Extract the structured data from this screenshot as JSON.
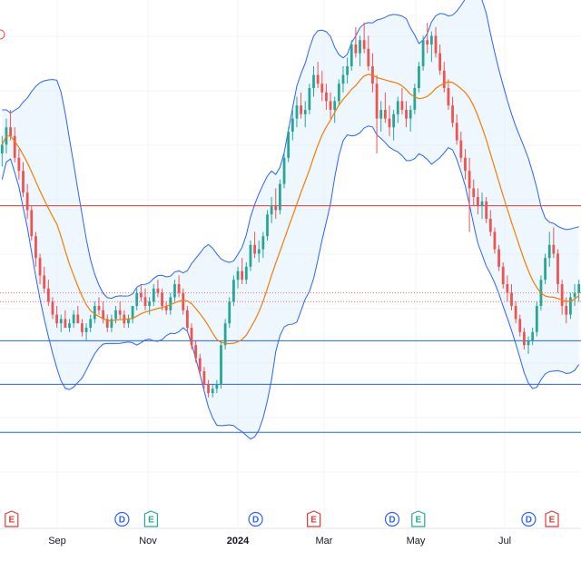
{
  "chart_data": {
    "type": "candlestick",
    "title": "",
    "x_ticks": [
      {
        "label": "Sep",
        "bold": false
      },
      {
        "label": "Nov",
        "bold": false
      },
      {
        "label": "2024",
        "bold": true
      },
      {
        "label": "Mar",
        "bold": false
      },
      {
        "label": "May",
        "bold": false
      },
      {
        "label": "Jul",
        "bold": false
      }
    ],
    "y_range_relative": [
      0,
      100
    ],
    "candles": [
      [
        70,
        74,
        67,
        72
      ],
      [
        72,
        78,
        70,
        76
      ],
      [
        76,
        80,
        73,
        74
      ],
      [
        74,
        76,
        68,
        69
      ],
      [
        69,
        71,
        64,
        66
      ],
      [
        66,
        68,
        60,
        61
      ],
      [
        61,
        63,
        55,
        57
      ],
      [
        57,
        58,
        50,
        51
      ],
      [
        51,
        52,
        44,
        46
      ],
      [
        46,
        47,
        40,
        42
      ],
      [
        42,
        44,
        38,
        39
      ],
      [
        39,
        41,
        35,
        36
      ],
      [
        36,
        37,
        32,
        33
      ],
      [
        33,
        35,
        30,
        31
      ],
      [
        31,
        33,
        29,
        32
      ],
      [
        32,
        34,
        30,
        30
      ],
      [
        30,
        32,
        29,
        31
      ],
      [
        31,
        34,
        30,
        33
      ],
      [
        33,
        35,
        31,
        31
      ],
      [
        31,
        32,
        28,
        29
      ],
      [
        29,
        31,
        27,
        30
      ],
      [
        30,
        33,
        29,
        32
      ],
      [
        32,
        36,
        31,
        35
      ],
      [
        35,
        37,
        33,
        34
      ],
      [
        34,
        36,
        31,
        32
      ],
      [
        32,
        33,
        29,
        30
      ],
      [
        30,
        33,
        29,
        32
      ],
      [
        32,
        35,
        31,
        34
      ],
      [
        34,
        36,
        32,
        33
      ],
      [
        33,
        34,
        30,
        31
      ],
      [
        31,
        33,
        30,
        32
      ],
      [
        32,
        35,
        31,
        35
      ],
      [
        35,
        39,
        34,
        38
      ],
      [
        38,
        40,
        36,
        37
      ],
      [
        37,
        39,
        34,
        35
      ],
      [
        35,
        37,
        33,
        36
      ],
      [
        36,
        40,
        35,
        39
      ],
      [
        39,
        41,
        37,
        38
      ],
      [
        38,
        39,
        34,
        35
      ],
      [
        35,
        36,
        33,
        34
      ],
      [
        34,
        38,
        33,
        37
      ],
      [
        37,
        41,
        36,
        40
      ],
      [
        40,
        42,
        37,
        38
      ],
      [
        38,
        39,
        33,
        34
      ],
      [
        34,
        35,
        29,
        30
      ],
      [
        30,
        31,
        25,
        26
      ],
      [
        26,
        27,
        22,
        23
      ],
      [
        23,
        24,
        19,
        20
      ],
      [
        20,
        21,
        16,
        17
      ],
      [
        17,
        18,
        14,
        15
      ],
      [
        15,
        17,
        14,
        16
      ],
      [
        16,
        18,
        15,
        17
      ],
      [
        17,
        27,
        16,
        26
      ],
      [
        26,
        32,
        25,
        31
      ],
      [
        31,
        37,
        30,
        36
      ],
      [
        36,
        42,
        35,
        41
      ],
      [
        41,
        44,
        39,
        43
      ],
      [
        43,
        46,
        40,
        41
      ],
      [
        41,
        45,
        40,
        44
      ],
      [
        44,
        50,
        43,
        49
      ],
      [
        49,
        52,
        46,
        47
      ],
      [
        47,
        50,
        45,
        48
      ],
      [
        48,
        52,
        46,
        51
      ],
      [
        51,
        57,
        50,
        56
      ],
      [
        56,
        60,
        54,
        58
      ],
      [
        58,
        62,
        55,
        57
      ],
      [
        57,
        64,
        56,
        63
      ],
      [
        63,
        70,
        62,
        69
      ],
      [
        69,
        76,
        68,
        75
      ],
      [
        75,
        80,
        73,
        78
      ],
      [
        78,
        83,
        76,
        81
      ],
      [
        81,
        84,
        78,
        79
      ],
      [
        79,
        82,
        76,
        80
      ],
      [
        80,
        86,
        79,
        85
      ],
      [
        85,
        90,
        83,
        88
      ],
      [
        88,
        91,
        85,
        86
      ],
      [
        86,
        89,
        82,
        84
      ],
      [
        84,
        86,
        80,
        82
      ],
      [
        82,
        84,
        78,
        80
      ],
      [
        80,
        83,
        77,
        82
      ],
      [
        82,
        87,
        81,
        86
      ],
      [
        86,
        90,
        84,
        88
      ],
      [
        88,
        92,
        86,
        90
      ],
      [
        90,
        96,
        89,
        95
      ],
      [
        95,
        99,
        92,
        93
      ],
      [
        93,
        97,
        90,
        96
      ],
      [
        96,
        100,
        93,
        94
      ],
      [
        94,
        97,
        89,
        90
      ],
      [
        90,
        93,
        84,
        86
      ],
      [
        86,
        88,
        70,
        78
      ],
      [
        78,
        82,
        75,
        80
      ],
      [
        80,
        84,
        77,
        78
      ],
      [
        78,
        81,
        74,
        76
      ],
      [
        76,
        80,
        73,
        79
      ],
      [
        79,
        83,
        77,
        82
      ],
      [
        82,
        85,
        79,
        80
      ],
      [
        80,
        82,
        76,
        78
      ],
      [
        78,
        81,
        75,
        80
      ],
      [
        80,
        86,
        79,
        85
      ],
      [
        85,
        91,
        84,
        90
      ],
      [
        90,
        97,
        89,
        96
      ],
      [
        96,
        100,
        93,
        95
      ],
      [
        95,
        98,
        91,
        97
      ],
      [
        97,
        99,
        92,
        93
      ],
      [
        93,
        95,
        88,
        89
      ],
      [
        89,
        91,
        84,
        85
      ],
      [
        85,
        87,
        80,
        81
      ],
      [
        81,
        83,
        76,
        77
      ],
      [
        77,
        79,
        72,
        73
      ],
      [
        73,
        75,
        68,
        69
      ],
      [
        69,
        71,
        64,
        66
      ],
      [
        66,
        69,
        52,
        62
      ],
      [
        62,
        64,
        58,
        60
      ],
      [
        60,
        62,
        56,
        58
      ],
      [
        58,
        61,
        55,
        59
      ],
      [
        59,
        60,
        54,
        55
      ],
      [
        55,
        57,
        51,
        52
      ],
      [
        52,
        53,
        47,
        48
      ],
      [
        48,
        49,
        43,
        44
      ],
      [
        44,
        45,
        39,
        40
      ],
      [
        40,
        42,
        36,
        38
      ],
      [
        38,
        40,
        34,
        35
      ],
      [
        35,
        36,
        31,
        32
      ],
      [
        32,
        33,
        28,
        29
      ],
      [
        29,
        30,
        25,
        26
      ],
      [
        26,
        28,
        24,
        27
      ],
      [
        27,
        30,
        26,
        29
      ],
      [
        29,
        36,
        28,
        35
      ],
      [
        35,
        42,
        34,
        41
      ],
      [
        41,
        47,
        40,
        46
      ],
      [
        46,
        52,
        44,
        49
      ],
      [
        49,
        53,
        46,
        47
      ],
      [
        47,
        48,
        38,
        40
      ],
      [
        40,
        41,
        33,
        35
      ],
      [
        35,
        37,
        31,
        33
      ],
      [
        33,
        38,
        32,
        37
      ],
      [
        37,
        40,
        35,
        38
      ],
      [
        38,
        41,
        36,
        40
      ]
    ],
    "indicators": [
      {
        "name": "Bollinger Bands",
        "style": "upper/lower band with shaded fill",
        "color": "#2962FF"
      },
      {
        "name": "Moving Average",
        "color": "#F57C00"
      }
    ],
    "horizontal_lines": [
      {
        "level": 58,
        "color": "#E53935",
        "style": "solid"
      },
      {
        "level": 38,
        "color": "#E57373",
        "style": "dotted"
      },
      {
        "level": 36,
        "color": "#E57373",
        "style": "dotted"
      },
      {
        "level": 27,
        "color": "#2962FF",
        "style": "solid"
      },
      {
        "level": 17,
        "color": "#2962FF",
        "style": "solid"
      },
      {
        "level": 6,
        "color": "#2962FF",
        "style": "solid"
      }
    ],
    "events": [
      {
        "type": "E",
        "x_ratio": 0.02
      },
      {
        "type": "D",
        "x_ratio": 0.21
      },
      {
        "type": "E",
        "x_ratio": 0.26
      },
      {
        "type": "D",
        "x_ratio": 0.44
      },
      {
        "type": "E",
        "x_ratio": 0.54
      },
      {
        "type": "D",
        "x_ratio": 0.675
      },
      {
        "type": "E",
        "x_ratio": 0.72
      },
      {
        "type": "D",
        "x_ratio": 0.91
      },
      {
        "type": "E",
        "x_ratio": 0.95
      }
    ],
    "grid": true,
    "colors": {
      "up": "#26A69A",
      "down": "#EF5350",
      "band_line": "#2962FF",
      "band_fill": "#E3F2FD",
      "ma": "#F57C00",
      "earnings_badge": "#E53935",
      "dividend_badge": "#2962FF",
      "earnings_alt_badge": "#26A69A"
    }
  }
}
